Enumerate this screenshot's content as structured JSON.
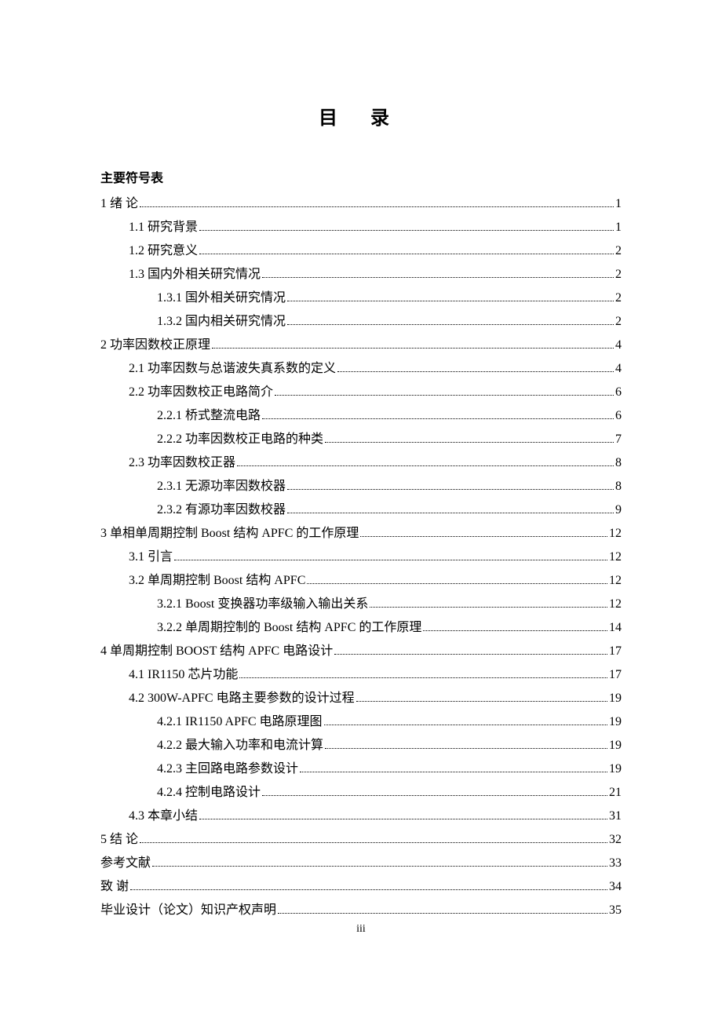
{
  "title": "目 录",
  "symbolTable": "主要符号表",
  "pageFooter": "iii",
  "entries": [
    {
      "level": 0,
      "label": "1 绪   论",
      "page": "1"
    },
    {
      "level": 1,
      "label": "1.1  研究背景",
      "page": "1"
    },
    {
      "level": 1,
      "label": "1.2  研究意义",
      "page": "2"
    },
    {
      "level": 1,
      "label": "1.3  国内外相关研究情况",
      "page": "2"
    },
    {
      "level": 2,
      "label": "1.3.1  国外相关研究情况",
      "page": "2"
    },
    {
      "level": 2,
      "label": "1.3.2  国内相关研究情况",
      "page": "2"
    },
    {
      "level": 0,
      "label": "2  功率因数校正原理",
      "page": "4"
    },
    {
      "level": 1,
      "label": "2.1  功率因数与总谐波失真系数的定义",
      "page": "4"
    },
    {
      "level": 1,
      "label": "2.2  功率因数校正电路简介",
      "page": "6"
    },
    {
      "level": 2,
      "label": "2.2.1  桥式整流电路",
      "page": "6"
    },
    {
      "level": 2,
      "label": "2.2.2  功率因数校正电路的种类",
      "page": "7"
    },
    {
      "level": 1,
      "label": "2.3  功率因数校正器",
      "page": "8"
    },
    {
      "level": 2,
      "label": "2.3.1  无源功率因数校器",
      "page": "8"
    },
    {
      "level": 2,
      "label": "2.3.2  有源功率因数校器",
      "page": "9"
    },
    {
      "level": 0,
      "label": "3  单相单周期控制 Boost 结构 APFC 的工作原理 ",
      "page": "12"
    },
    {
      "level": 1,
      "label": "3.1  引言",
      "page": "12"
    },
    {
      "level": 1,
      "label": "3.2  单周期控制 Boost 结构 APFC ",
      "page": "12"
    },
    {
      "level": 2,
      "label": "3.2.1  Boost 变换器功率级输入输出关系 ",
      "page": "12"
    },
    {
      "level": 2,
      "label": "3.2.2  单周期控制的 Boost 结构 APFC 的工作原理 ",
      "page": "14"
    },
    {
      "level": 0,
      "label": "4  单周期控制 BOOST 结构 APFC 电路设计",
      "page": "17"
    },
    {
      "level": 1,
      "label": "4.1  IR1150 芯片功能",
      "page": "17"
    },
    {
      "level": 1,
      "label": "4.2  300W-APFC 电路主要参数的设计过程",
      "page": "19"
    },
    {
      "level": 2,
      "label": "4.2.1 IR1150 APFC 电路原理图",
      "page": "19"
    },
    {
      "level": 2,
      "label": "4.2.2  最大输入功率和电流计算",
      "page": "19"
    },
    {
      "level": 2,
      "label": "4.2.3  主回路电路参数设计",
      "page": "19"
    },
    {
      "level": 2,
      "label": "4.2.4  控制电路设计",
      "page": "21"
    },
    {
      "level": 1,
      "label": "4.3  本章小结",
      "page": "31"
    },
    {
      "level": 0,
      "label": "5 结   论",
      "page": "32"
    },
    {
      "level": 0,
      "label": "参考文献",
      "page": "33"
    },
    {
      "level": 0,
      "label": "致    谢",
      "page": "34"
    },
    {
      "level": 0,
      "label": "毕业设计（论文）知识产权声明",
      "page": "35"
    }
  ]
}
